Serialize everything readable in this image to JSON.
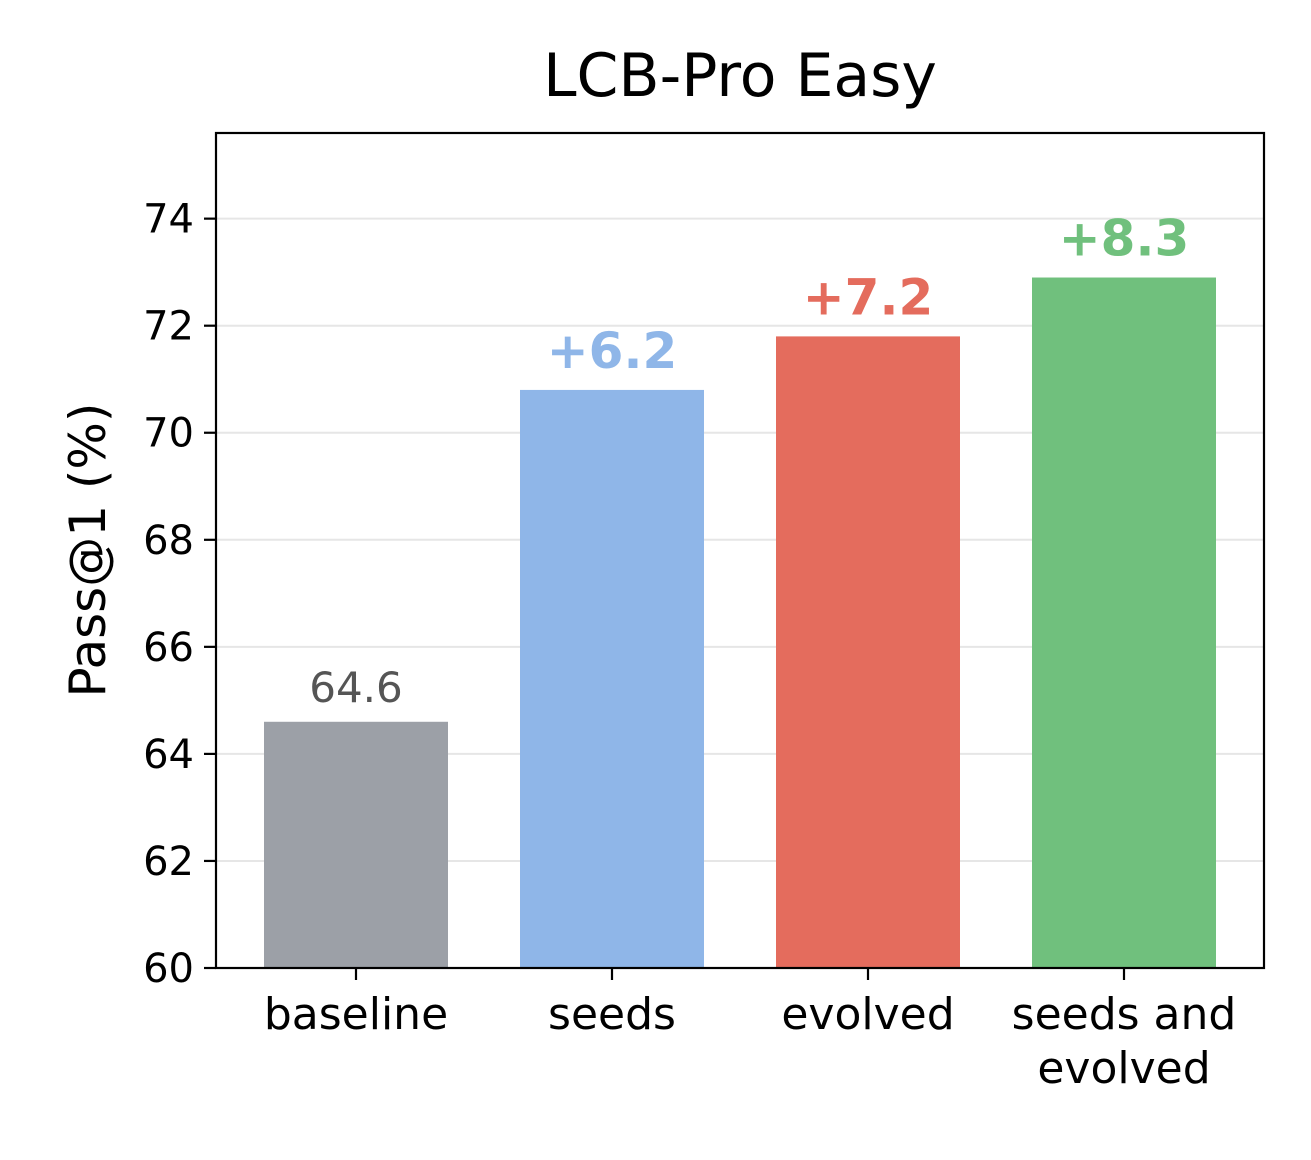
{
  "chart_data": {
    "type": "bar",
    "title": "LCB-Pro Easy",
    "xlabel": "",
    "ylabel": "Pass@1 (%)",
    "ylim": [
      60,
      75.6
    ],
    "yticks": [
      60,
      62,
      64,
      66,
      68,
      70,
      72,
      74
    ],
    "grid": "horizontal",
    "categories": [
      [
        "baseline"
      ],
      [
        "seeds"
      ],
      [
        "evolved"
      ],
      [
        "seeds and",
        "evolved"
      ]
    ],
    "values": [
      64.6,
      70.8,
      71.8,
      72.9
    ],
    "data_labels": [
      "64.6",
      "+6.2",
      "+7.2",
      "+8.3"
    ],
    "colors": [
      "#9ca0a7",
      "#8fb6e8",
      "#e46c5d",
      "#70c07d"
    ],
    "label_colors": [
      "#555555",
      "#8fb6e8",
      "#e46c5d",
      "#70c07d"
    ]
  }
}
